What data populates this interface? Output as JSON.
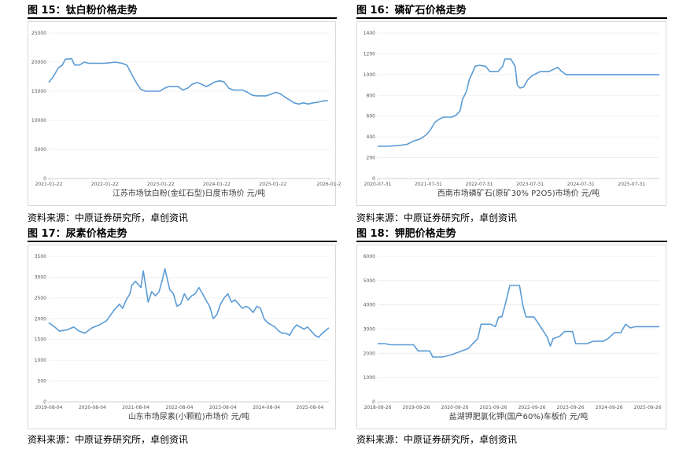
{
  "chart_data": [
    {
      "type": "line",
      "title": "图 15：钛白粉价格走势",
      "xlabel": "江苏市场钛白粉(金红石型)日度市场价 元/吨",
      "ylim": [
        0,
        25000
      ],
      "yticks": [
        "0",
        "5000",
        "10000",
        "15000",
        "20000",
        "25000"
      ],
      "xticks": [
        "2021-01-22",
        "2022-01-22",
        "2023-01-22",
        "2024-01-22",
        "2025-01-22",
        "2026-01-2"
      ],
      "xrange": [
        "2021-01-22",
        "2026-01-22"
      ],
      "color": "#5b9bd5",
      "source": "资料来源：中原证券研究所，卓创资讯",
      "points": [
        [
          "2021-01-22",
          16500
        ],
        [
          "2021-02-20",
          17500
        ],
        [
          "2021-03-25",
          19000
        ],
        [
          "2021-04-20",
          19500
        ],
        [
          "2021-05-10",
          20500
        ],
        [
          "2021-06-20",
          20600
        ],
        [
          "2021-07-10",
          19500
        ],
        [
          "2021-08-10",
          19500
        ],
        [
          "2021-09-10",
          20000
        ],
        [
          "2021-10-10",
          19800
        ],
        [
          "2021-12-01",
          19800
        ],
        [
          "2022-01-22",
          19800
        ],
        [
          "2022-04-01",
          20000
        ],
        [
          "2022-05-15",
          19800
        ],
        [
          "2022-06-15",
          19500
        ],
        [
          "2022-07-15",
          18000
        ],
        [
          "2022-08-15",
          16500
        ],
        [
          "2022-09-15",
          15300
        ],
        [
          "2022-10-15",
          15000
        ],
        [
          "2022-11-15",
          15000
        ],
        [
          "2023-01-15",
          15000
        ],
        [
          "2023-02-15",
          15500
        ],
        [
          "2023-03-15",
          15800
        ],
        [
          "2023-05-15",
          15800
        ],
        [
          "2023-06-15",
          15200
        ],
        [
          "2023-07-15",
          15500
        ],
        [
          "2023-08-15",
          16200
        ],
        [
          "2023-09-15",
          16500
        ],
        [
          "2023-10-15",
          16200
        ],
        [
          "2023-11-15",
          15800
        ],
        [
          "2023-12-15",
          16200
        ],
        [
          "2024-01-10",
          16600
        ],
        [
          "2024-02-10",
          16800
        ],
        [
          "2024-03-10",
          16600
        ],
        [
          "2024-04-10",
          15500
        ],
        [
          "2024-05-10",
          15200
        ],
        [
          "2024-07-10",
          15200
        ],
        [
          "2024-08-10",
          14800
        ],
        [
          "2024-09-10",
          14300
        ],
        [
          "2024-10-10",
          14200
        ],
        [
          "2024-12-10",
          14200
        ],
        [
          "2025-01-10",
          14500
        ],
        [
          "2025-02-10",
          14800
        ],
        [
          "2025-03-10",
          14600
        ],
        [
          "2025-04-10",
          14000
        ],
        [
          "2025-05-10",
          13500
        ],
        [
          "2025-06-10",
          13000
        ],
        [
          "2025-07-10",
          12800
        ],
        [
          "2025-08-10",
          13000
        ],
        [
          "2025-09-10",
          12800
        ],
        [
          "2025-10-10",
          13000
        ],
        [
          "2025-11-10",
          13100
        ],
        [
          "2025-12-10",
          13300
        ],
        [
          "2026-01-15",
          13400
        ]
      ]
    },
    {
      "type": "line",
      "title": "图 16：磷矿石价格走势",
      "xlabel": "西南市场磷矿石(原矿30% P2O5)市场价 元/吨",
      "ylim": [
        0,
        1400
      ],
      "yticks": [
        "0",
        "200",
        "400",
        "600",
        "800",
        "1000",
        "1200",
        "1400"
      ],
      "xticks": [
        "2020-07-31",
        "2021-07-31",
        "2022-07-31",
        "2023-07-31",
        "2024-07-31",
        "2025-07-31"
      ],
      "xrange": [
        "2020-07-31",
        "2026-02-15"
      ],
      "color": "#5b9bd5",
      "source": "资料来源：中原证券研究所，卓创资讯",
      "points": [
        [
          "2020-07-31",
          310
        ],
        [
          "2020-10-01",
          310
        ],
        [
          "2020-12-01",
          315
        ],
        [
          "2021-01-15",
          320
        ],
        [
          "2021-03-01",
          330
        ],
        [
          "2021-04-15",
          360
        ],
        [
          "2021-06-01",
          380
        ],
        [
          "2021-07-15",
          420
        ],
        [
          "2021-08-15",
          470
        ],
        [
          "2021-09-15",
          540
        ],
        [
          "2021-10-15",
          570
        ],
        [
          "2021-11-15",
          590
        ],
        [
          "2022-01-15",
          590
        ],
        [
          "2022-02-15",
          610
        ],
        [
          "2022-03-15",
          650
        ],
        [
          "2022-04-01",
          760
        ],
        [
          "2022-05-01",
          840
        ],
        [
          "2022-05-20",
          950
        ],
        [
          "2022-06-10",
          1010
        ],
        [
          "2022-07-01",
          1080
        ],
        [
          "2022-08-01",
          1090
        ],
        [
          "2022-09-15",
          1080
        ],
        [
          "2022-10-15",
          1030
        ],
        [
          "2022-12-15",
          1030
        ],
        [
          "2023-01-15",
          1080
        ],
        [
          "2023-02-01",
          1150
        ],
        [
          "2023-03-15",
          1150
        ],
        [
          "2023-04-15",
          1080
        ],
        [
          "2023-05-01",
          900
        ],
        [
          "2023-05-20",
          870
        ],
        [
          "2023-06-15",
          880
        ],
        [
          "2023-07-15",
          950
        ],
        [
          "2023-08-15",
          990
        ],
        [
          "2023-09-15",
          1010
        ],
        [
          "2023-10-15",
          1030
        ],
        [
          "2023-12-15",
          1030
        ],
        [
          "2024-01-15",
          1050
        ],
        [
          "2024-02-15",
          1070
        ],
        [
          "2024-03-15",
          1030
        ],
        [
          "2024-04-15",
          1000
        ],
        [
          "2025-01-01",
          1000
        ],
        [
          "2026-02-15",
          1000
        ]
      ]
    },
    {
      "type": "line",
      "title": "图 17：尿素价格走势",
      "xlabel": "山东市场尿素(小颗粒)市场价 元/吨",
      "ylim": [
        0,
        3500
      ],
      "yticks": [
        "0",
        "500",
        "1000",
        "1500",
        "2000",
        "2500",
        "3000",
        "3500"
      ],
      "xticks": [
        "2019-08-04",
        "2020-08-04",
        "2021-08-04",
        "2022-08-04",
        "2023-08-04",
        "2024-08-04",
        "2025-08-04"
      ],
      "xrange": [
        "2019-08-04",
        "2026-01-10"
      ],
      "color": "#5b9bd5",
      "source": "资料来源：中原证券研究所，卓创资讯",
      "points": [
        [
          "2019-08-04",
          1900
        ],
        [
          "2019-09-15",
          1820
        ],
        [
          "2019-11-01",
          1700
        ],
        [
          "2020-01-01",
          1730
        ],
        [
          "2020-03-01",
          1800
        ],
        [
          "2020-04-15",
          1700
        ],
        [
          "2020-06-01",
          1650
        ],
        [
          "2020-08-01",
          1780
        ],
        [
          "2020-10-01",
          1850
        ],
        [
          "2020-12-01",
          1950
        ],
        [
          "2021-02-01",
          2200
        ],
        [
          "2021-03-20",
          2350
        ],
        [
          "2021-04-15",
          2250
        ],
        [
          "2021-05-15",
          2450
        ],
        [
          "2021-06-15",
          2600
        ],
        [
          "2021-07-01",
          2800
        ],
        [
          "2021-08-01",
          2900
        ],
        [
          "2021-09-15",
          2750
        ],
        [
          "2021-10-05",
          3150
        ],
        [
          "2021-10-25",
          2800
        ],
        [
          "2021-11-15",
          2400
        ],
        [
          "2021-12-15",
          2650
        ],
        [
          "2022-01-15",
          2550
        ],
        [
          "2022-02-15",
          2650
        ],
        [
          "2022-03-15",
          2950
        ],
        [
          "2022-04-05",
          3200
        ],
        [
          "2022-04-25",
          2950
        ],
        [
          "2022-05-15",
          2700
        ],
        [
          "2022-06-15",
          2600
        ],
        [
          "2022-07-15",
          2300
        ],
        [
          "2022-08-15",
          2350
        ],
        [
          "2022-09-15",
          2600
        ],
        [
          "2022-10-15",
          2450
        ],
        [
          "2022-11-15",
          2550
        ],
        [
          "2022-12-15",
          2600
        ],
        [
          "2023-01-15",
          2750
        ],
        [
          "2023-02-15",
          2600
        ],
        [
          "2023-03-15",
          2450
        ],
        [
          "2023-04-15",
          2300
        ],
        [
          "2023-05-15",
          2000
        ],
        [
          "2023-06-15",
          2100
        ],
        [
          "2023-07-15",
          2350
        ],
        [
          "2023-08-15",
          2500
        ],
        [
          "2023-09-15",
          2600
        ],
        [
          "2023-10-15",
          2400
        ],
        [
          "2023-11-15",
          2450
        ],
        [
          "2023-12-15",
          2350
        ],
        [
          "2024-01-15",
          2250
        ],
        [
          "2024-02-15",
          2300
        ],
        [
          "2024-03-15",
          2250
        ],
        [
          "2024-04-15",
          2150
        ],
        [
          "2024-05-15",
          2300
        ],
        [
          "2024-06-15",
          2250
        ],
        [
          "2024-07-15",
          2000
        ],
        [
          "2024-08-15",
          1900
        ],
        [
          "2024-09-15",
          1850
        ],
        [
          "2024-10-15",
          1800
        ],
        [
          "2024-11-15",
          1700
        ],
        [
          "2024-12-15",
          1650
        ],
        [
          "2025-01-15",
          1650
        ],
        [
          "2025-02-15",
          1600
        ],
        [
          "2025-03-15",
          1750
        ],
        [
          "2025-04-15",
          1850
        ],
        [
          "2025-05-15",
          1800
        ],
        [
          "2025-06-15",
          1750
        ],
        [
          "2025-07-15",
          1800
        ],
        [
          "2025-08-15",
          1700
        ],
        [
          "2025-09-15",
          1600
        ],
        [
          "2025-10-15",
          1550
        ],
        [
          "2025-11-15",
          1650
        ],
        [
          "2025-12-15",
          1720
        ],
        [
          "2026-01-10",
          1780
        ]
      ]
    },
    {
      "type": "line",
      "title": "图 18：钾肥价格走势",
      "xlabel": "盐湖钾肥氯化钾(国产60%)车板价 元/吨",
      "ylim": [
        0,
        6000
      ],
      "yticks": [
        "0",
        "1000",
        "2000",
        "3000",
        "4000",
        "5000",
        "6000"
      ],
      "xticks": [
        "2018-09-26",
        "2019-09-26",
        "2020-09-26",
        "2021-09-26",
        "2022-09-26",
        "2023-09-26",
        "2024-09-26",
        "2025-09-26"
      ],
      "xrange": [
        "2018-09-26",
        "2026-01-15"
      ],
      "color": "#5b9bd5",
      "source": "资料来源：中原证券研究所，卓创资讯",
      "points": [
        [
          "2018-09-26",
          2400
        ],
        [
          "2018-12-01",
          2400
        ],
        [
          "2019-02-01",
          2350
        ],
        [
          "2019-09-01",
          2350
        ],
        [
          "2019-10-15",
          2100
        ],
        [
          "2020-02-01",
          2100
        ],
        [
          "2020-03-01",
          1850
        ],
        [
          "2020-06-01",
          1850
        ],
        [
          "2020-09-01",
          1950
        ],
        [
          "2020-12-01",
          2100
        ],
        [
          "2021-02-01",
          2200
        ],
        [
          "2021-03-15",
          2400
        ],
        [
          "2021-05-01",
          2600
        ],
        [
          "2021-06-01",
          3200
        ],
        [
          "2021-09-01",
          3200
        ],
        [
          "2021-10-15",
          3100
        ],
        [
          "2021-11-15",
          3500
        ],
        [
          "2021-12-15",
          3500
        ],
        [
          "2022-01-15",
          4000
        ],
        [
          "2022-03-01",
          4800
        ],
        [
          "2022-06-01",
          4800
        ],
        [
          "2022-07-01",
          4000
        ],
        [
          "2022-08-01",
          3500
        ],
        [
          "2022-10-15",
          3500
        ],
        [
          "2022-12-01",
          3200
        ],
        [
          "2023-01-15",
          2900
        ],
        [
          "2023-02-15",
          2700
        ],
        [
          "2023-03-20",
          2300
        ],
        [
          "2023-04-15",
          2600
        ],
        [
          "2023-06-15",
          2700
        ],
        [
          "2023-08-01",
          2900
        ],
        [
          "2023-10-15",
          2900
        ],
        [
          "2023-11-15",
          2400
        ],
        [
          "2024-03-01",
          2400
        ],
        [
          "2024-05-01",
          2500
        ],
        [
          "2024-07-01",
          2500
        ],
        [
          "2024-08-01",
          2500
        ],
        [
          "2024-09-15",
          2600
        ],
        [
          "2024-11-15",
          2850
        ],
        [
          "2025-01-15",
          2850
        ],
        [
          "2025-03-01",
          3200
        ],
        [
          "2025-04-15",
          3050
        ],
        [
          "2025-06-01",
          3100
        ],
        [
          "2026-01-15",
          3100
        ]
      ]
    }
  ]
}
